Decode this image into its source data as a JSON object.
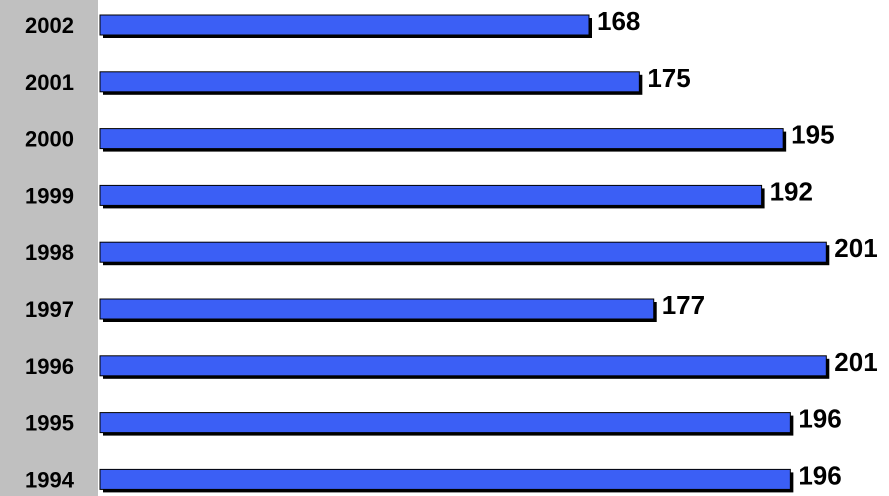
{
  "chart_data": {
    "type": "bar",
    "orientation": "horizontal",
    "categories": [
      "2002",
      "2001",
      "2000",
      "1999",
      "1998",
      "1997",
      "1996",
      "1995",
      "1994"
    ],
    "values": [
      168,
      175,
      195,
      192,
      201,
      177,
      201,
      196,
      196
    ],
    "data_labels": [
      "168",
      "175",
      "195",
      "192",
      "201",
      "177",
      "201",
      "196",
      "196"
    ],
    "title": "",
    "xlabel": "",
    "ylabel": "",
    "xlim": [
      100,
      202
    ],
    "grid": false,
    "legend": "none",
    "colors": {
      "bar_fill": "#3b5ff5",
      "bar_shadow": "#000000",
      "axis_band": "#c0c0c0",
      "text": "#000000"
    }
  }
}
